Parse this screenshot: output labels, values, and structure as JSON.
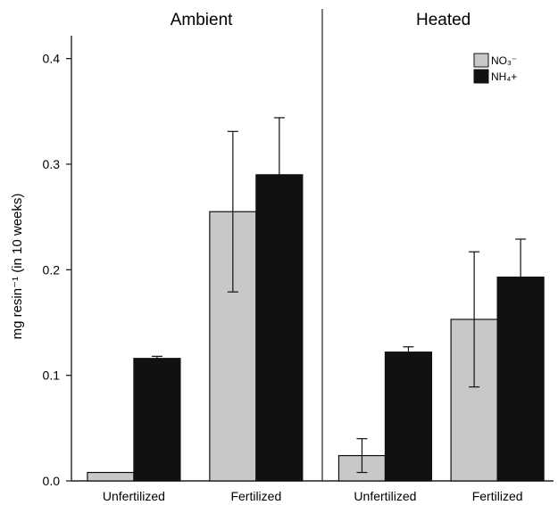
{
  "chart_data": {
    "type": "bar",
    "panels": [
      {
        "title": "Ambient",
        "categories": [
          "Unfertilized",
          "Fertilized"
        ],
        "series": [
          {
            "name": "NO₃⁻",
            "values": [
              0.008,
              0.255
            ],
            "errors": [
              0.0,
              0.076
            ]
          },
          {
            "name": "NH₄+",
            "values": [
              0.116,
              0.29
            ],
            "errors": [
              0.002,
              0.054
            ]
          }
        ]
      },
      {
        "title": "Heated",
        "categories": [
          "Unfertilized",
          "Fertilized"
        ],
        "series": [
          {
            "name": "NO₃⁻",
            "values": [
              0.024,
              0.153
            ],
            "errors": [
              0.016,
              0.064
            ]
          },
          {
            "name": "NH₄+",
            "values": [
              0.122,
              0.193
            ],
            "errors": [
              0.005,
              0.036
            ]
          }
        ]
      }
    ],
    "ylabel": "mg resin⁻¹ (in 10 weeks)",
    "ylim": [
      0,
      0.42
    ],
    "yticks": [
      0.0,
      0.1,
      0.2,
      0.3,
      0.4
    ],
    "ytick_labels": [
      "0.0",
      "0.1",
      "0.2",
      "0.3",
      "0.4"
    ],
    "legend": {
      "position": "top-right",
      "entries": [
        {
          "label": "NO₃⁻",
          "color": "#c8c8c8"
        },
        {
          "label": "NH₄+",
          "color": "#111111"
        }
      ]
    },
    "colors": {
      "no3": "#c8c8c8",
      "nh4": "#111111"
    },
    "grid": false
  }
}
